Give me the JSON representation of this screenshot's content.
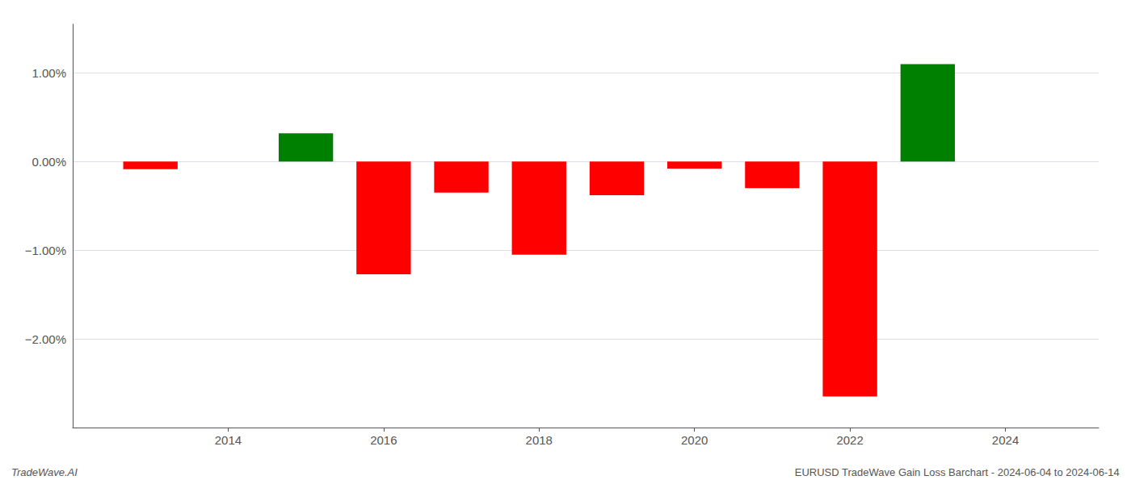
{
  "chart_data": {
    "type": "bar",
    "x": [
      2013,
      2015,
      2016,
      2017,
      2018,
      2019,
      2020,
      2021,
      2022,
      2023
    ],
    "values": [
      -0.085,
      0.32,
      -1.27,
      -0.35,
      -1.05,
      -0.38,
      -0.08,
      -0.3,
      -2.65,
      1.1
    ],
    "colors": [
      "#ff0000",
      "#008000",
      "#ff0000",
      "#ff0000",
      "#ff0000",
      "#ff0000",
      "#ff0000",
      "#ff0000",
      "#ff0000",
      "#008000"
    ],
    "xlim": [
      2012.0,
      2025.2
    ],
    "ylim": [
      -3.0,
      1.55
    ],
    "xticks": [
      2014,
      2016,
      2018,
      2020,
      2022,
      2024
    ],
    "yticks": [
      {
        "value": -2.0,
        "label": "−2.00%"
      },
      {
        "value": -1.0,
        "label": "−1.00%"
      },
      {
        "value": 0.0,
        "label": "0.00%"
      },
      {
        "value": 1.0,
        "label": "1.00%"
      }
    ],
    "grid": true,
    "annotations": [
      "TradeWave.AI",
      "EURUSD TradeWave Gain Loss Barchart - 2024-06-04 to 2024-06-14"
    ]
  }
}
